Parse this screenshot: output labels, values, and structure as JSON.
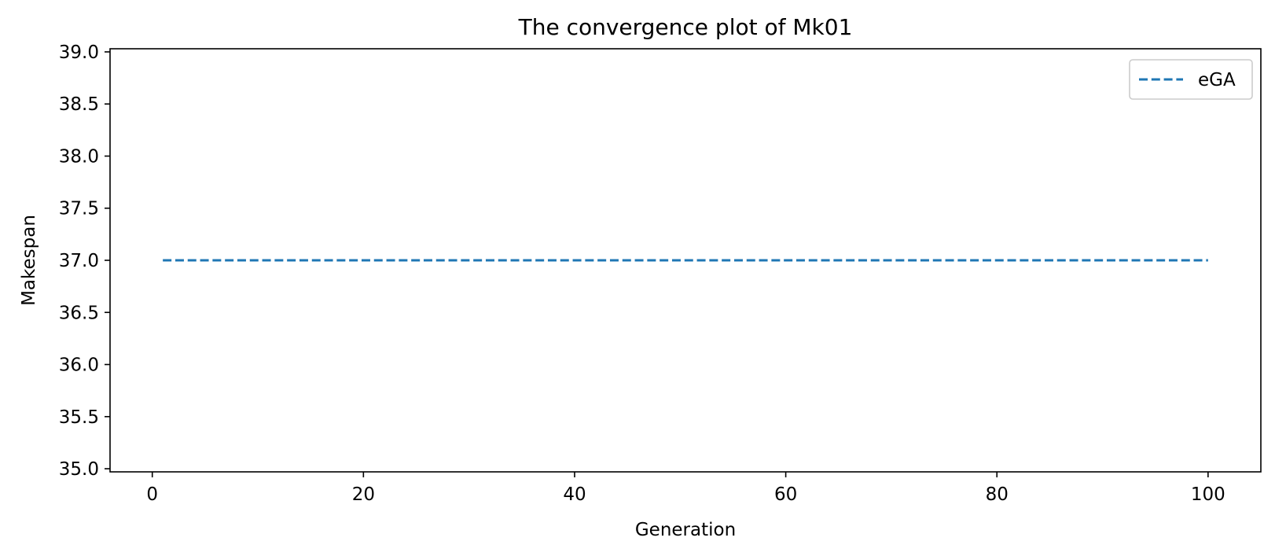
{
  "chart_data": {
    "type": "line",
    "title": "The convergence plot of Mk01",
    "xlabel": "Generation",
    "ylabel": "Makespan",
    "xlim": [
      -4,
      105
    ],
    "ylim": [
      34.97,
      39.03
    ],
    "xticks": [
      0,
      20,
      40,
      60,
      80,
      100
    ],
    "xtick_labels": [
      "0",
      "20",
      "40",
      "60",
      "80",
      "100"
    ],
    "yticks": [
      35.0,
      35.5,
      36.0,
      36.5,
      37.0,
      37.5,
      38.0,
      38.5,
      39.0
    ],
    "ytick_labels": [
      "35.0",
      "35.5",
      "36.0",
      "36.5",
      "37.0",
      "37.5",
      "38.0",
      "38.5",
      "39.0"
    ],
    "grid": false,
    "legend_position": "top-right",
    "series": [
      {
        "name": "eGA",
        "color": "#1f77b4",
        "line_style": "dashed",
        "x": [
          1,
          100
        ],
        "y": [
          37.0,
          37.0
        ]
      }
    ]
  }
}
